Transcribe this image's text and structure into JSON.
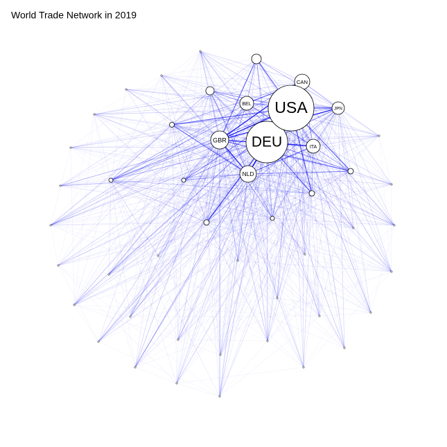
{
  "header": {
    "title": "World Trade Network in 2019"
  },
  "nodes": [
    {
      "label": "USA"
    },
    {
      "label": "DEU"
    },
    {
      "label": "GBR"
    },
    {
      "label": "NLD"
    },
    {
      "label": "BEL"
    },
    {
      "label": "CAN"
    },
    {
      "label": "JPN"
    },
    {
      "label": "ITA"
    }
  ]
}
